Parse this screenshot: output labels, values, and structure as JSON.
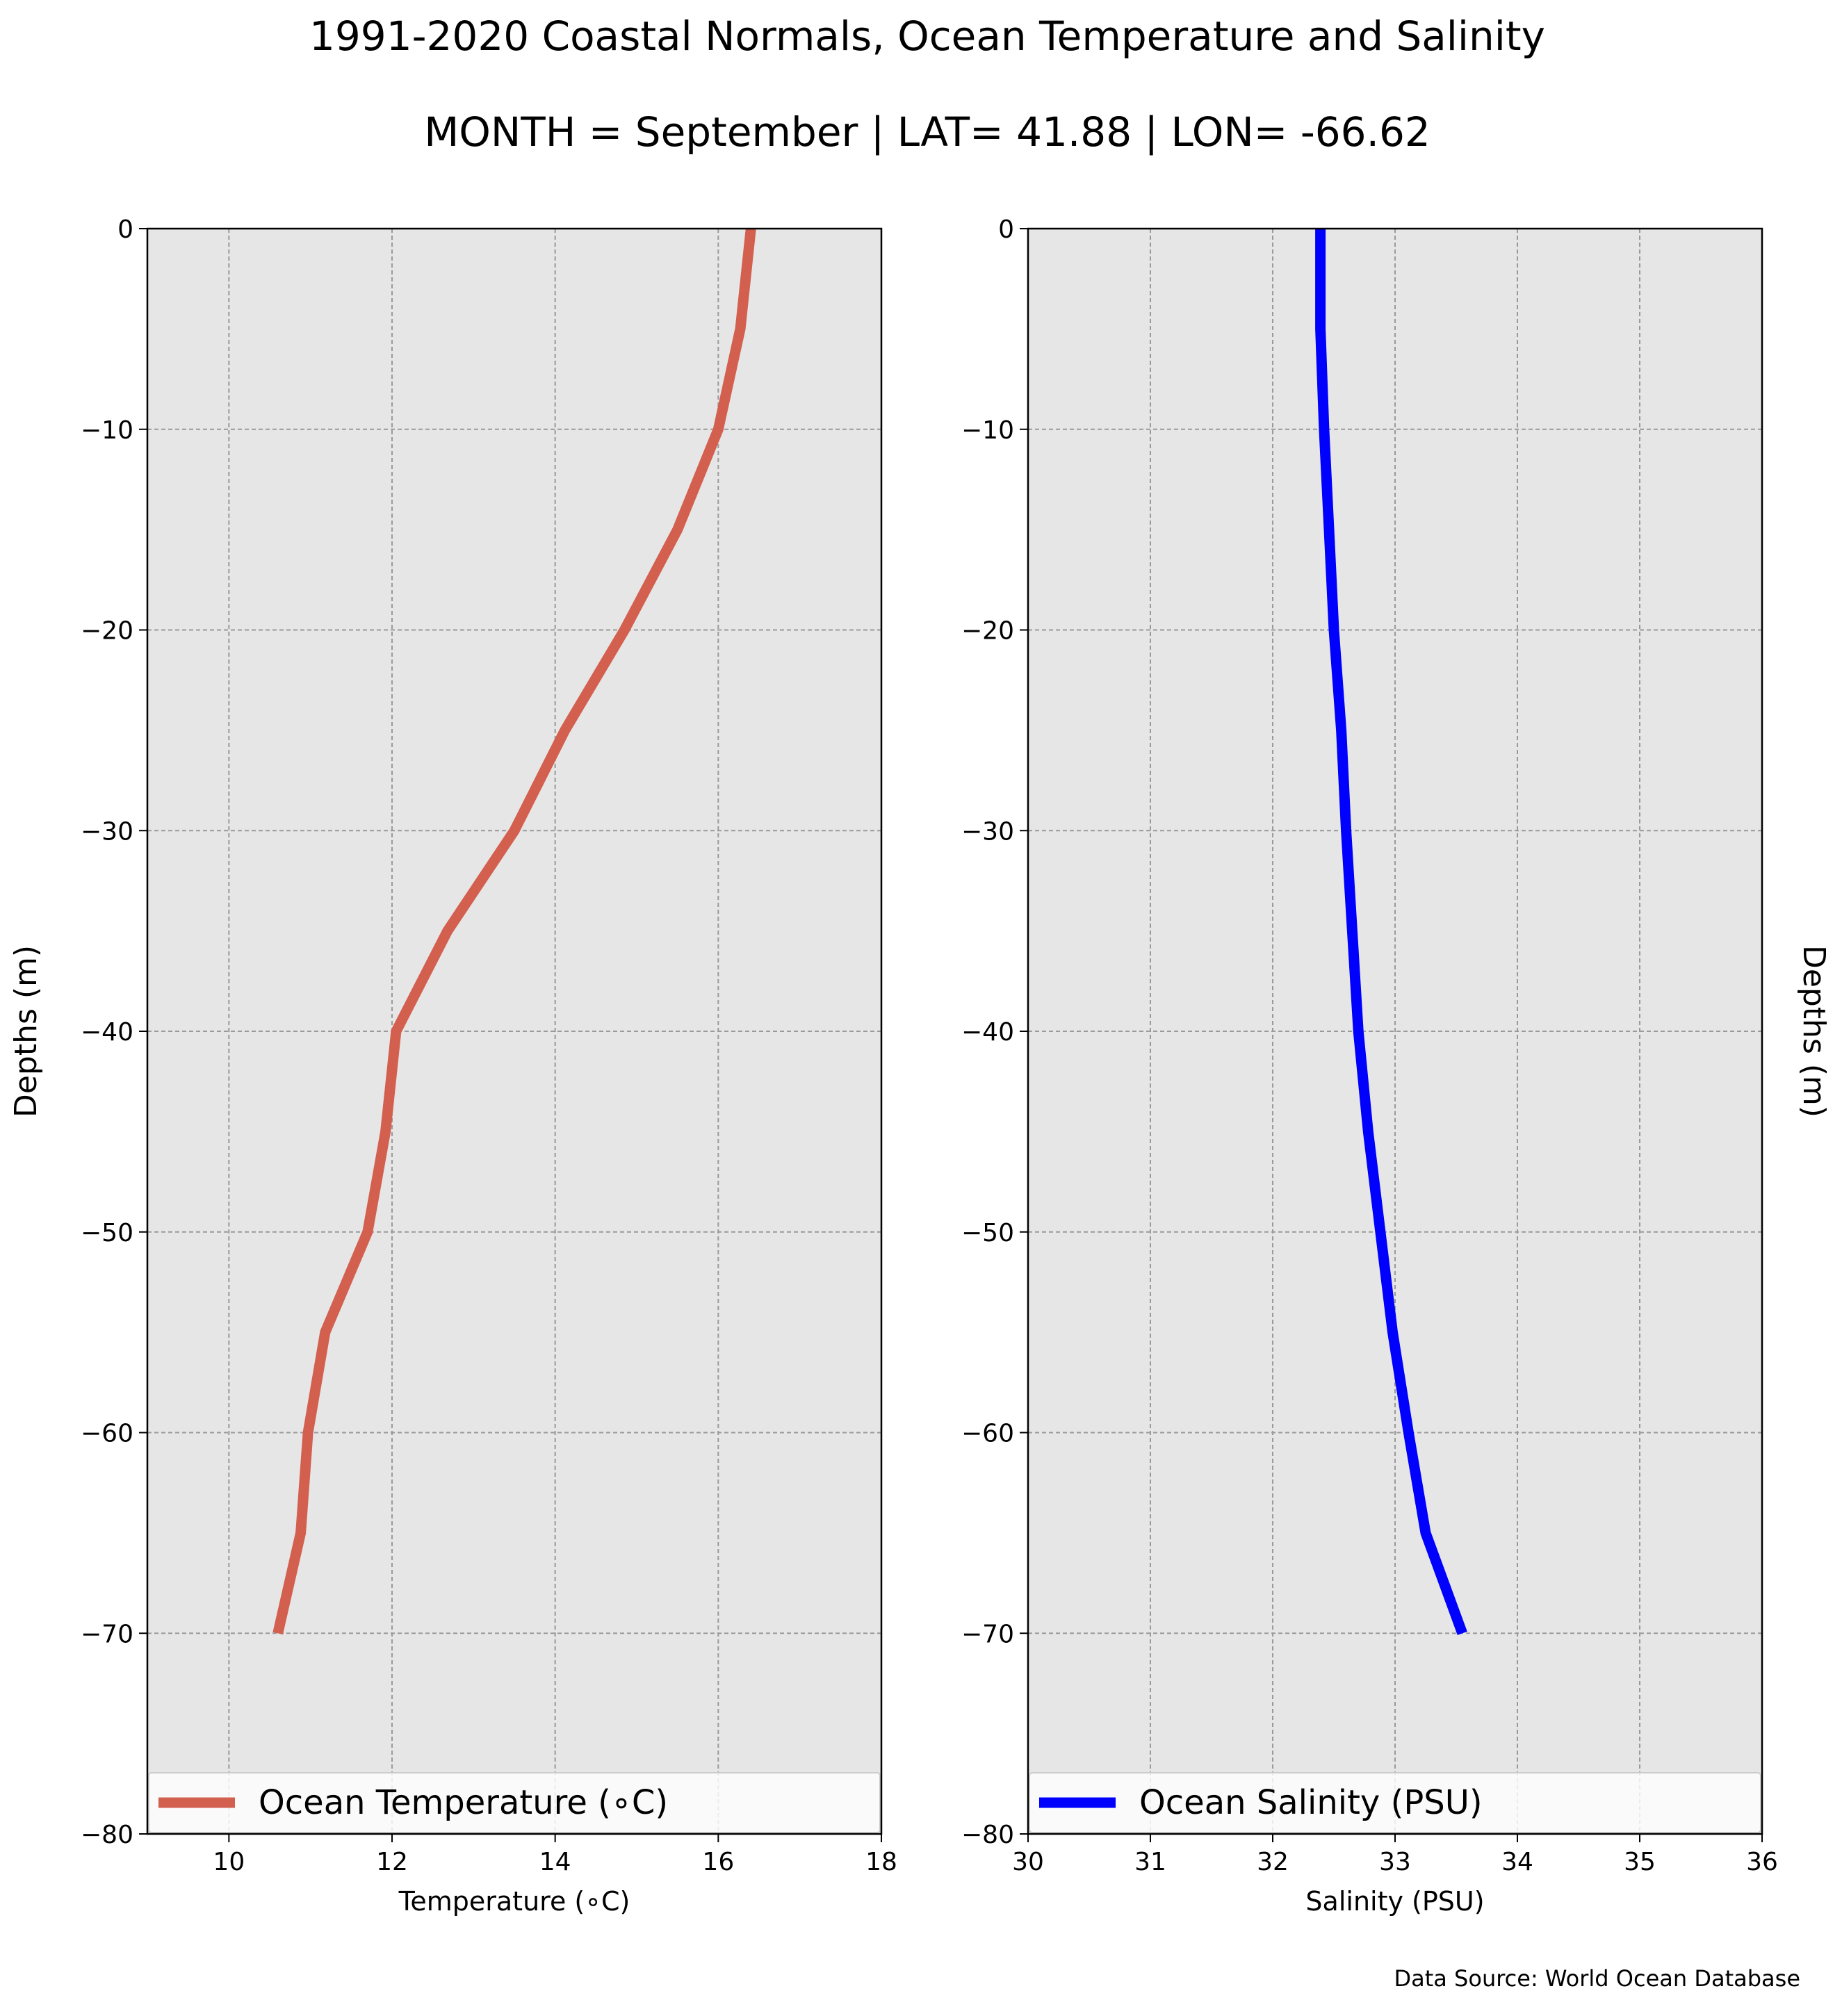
{
  "figure": {
    "title_line1": "1991-2020 Coastal Normals, Ocean Temperature and Salinity",
    "title_line2": "MONTH = September | LAT= 41.88 | LON= -66.62",
    "source_note": "Data Source: World Ocean Database"
  },
  "chart_data": [
    {
      "type": "line",
      "xlabel": "Temperature ($^\\circ$C)",
      "xlabel_display": "Temperature (∘C)",
      "ylabel": "Depths (m)",
      "xlim": [
        9,
        18
      ],
      "ylim": [
        -80,
        0
      ],
      "x_ticks": [
        "10",
        "12",
        "14",
        "16",
        "18"
      ],
      "y_ticks": [
        "0",
        "−10",
        "−20",
        "−30",
        "−40",
        "−50",
        "−60",
        "−70",
        "−80"
      ],
      "grid": true,
      "legend_position": "bottom",
      "series": [
        {
          "name": "Ocean Temperature (∘C)",
          "color": "#d35f4f",
          "depth": [
            0,
            -5,
            -10,
            -15,
            -20,
            -25,
            -30,
            -35,
            -40,
            -45,
            -50,
            -55,
            -60,
            -65,
            -70
          ],
          "values": [
            16.4,
            16.27,
            16.0,
            15.5,
            14.85,
            14.12,
            13.5,
            12.68,
            12.05,
            11.92,
            11.7,
            11.18,
            10.97,
            10.88,
            10.6
          ]
        }
      ]
    },
    {
      "type": "line",
      "xlabel": "Salinity (PSU)",
      "ylabel": "Depths (m)",
      "xlim": [
        30,
        36
      ],
      "ylim": [
        -80,
        0
      ],
      "x_ticks": [
        "30",
        "31",
        "32",
        "33",
        "34",
        "35",
        "36"
      ],
      "y_ticks": [
        "0",
        "−10",
        "−20",
        "−30",
        "−40",
        "−50",
        "−60",
        "−70",
        "−80"
      ],
      "grid": true,
      "legend_position": "bottom",
      "series": [
        {
          "name": "Ocean Salinity (PSU)",
          "color": "#0000ff",
          "depth": [
            0,
            -5,
            -10,
            -15,
            -20,
            -25,
            -30,
            -35,
            -40,
            -45,
            -50,
            -55,
            -60,
            -65,
            -70
          ],
          "values": [
            32.39,
            32.39,
            32.42,
            32.46,
            32.5,
            32.56,
            32.6,
            32.65,
            32.7,
            32.78,
            32.88,
            32.98,
            33.11,
            33.25,
            33.55
          ]
        }
      ]
    }
  ]
}
